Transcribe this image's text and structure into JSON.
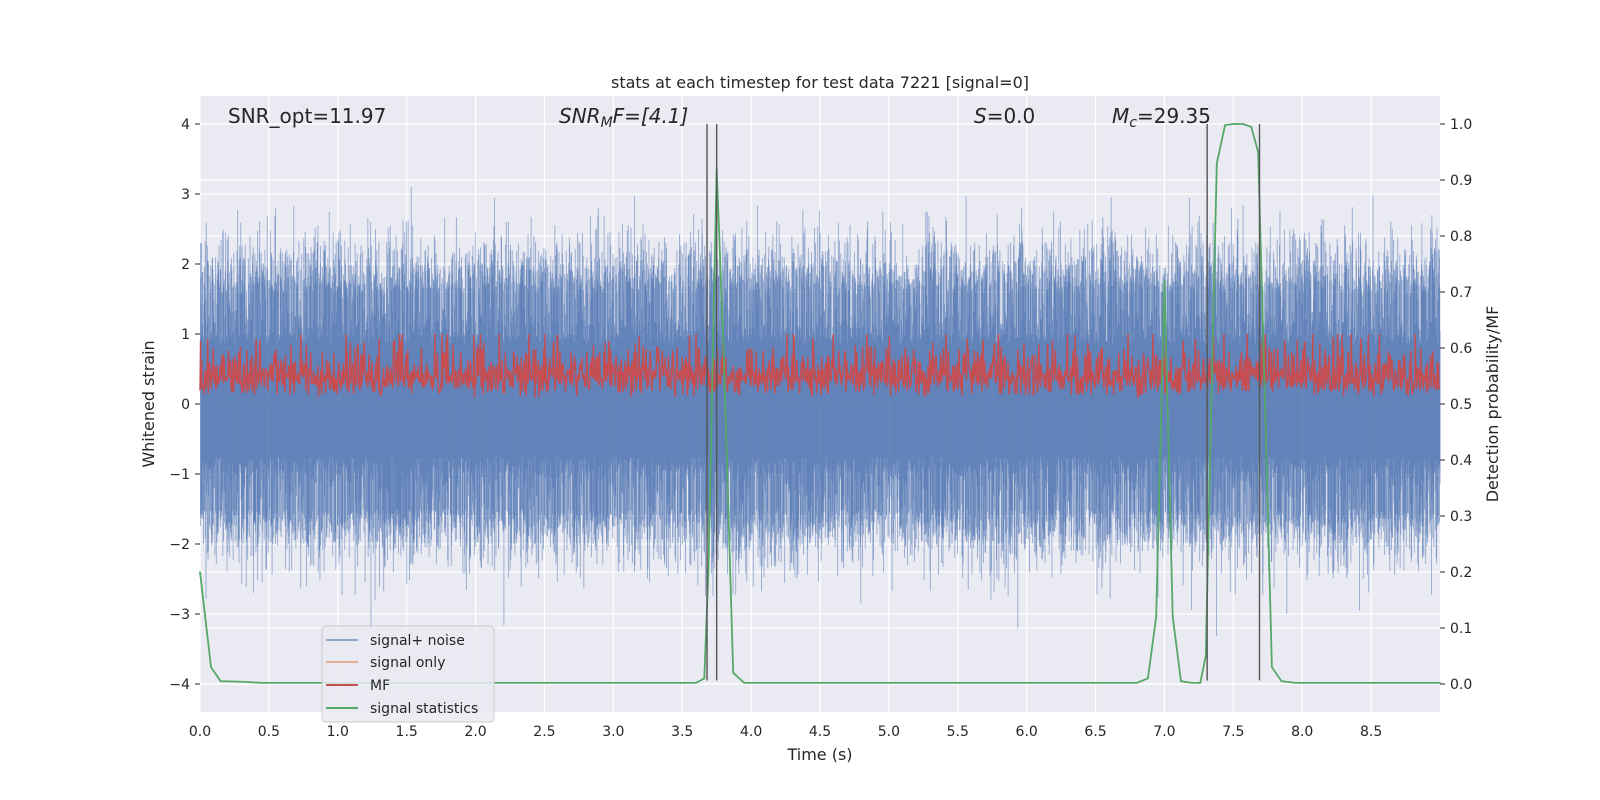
{
  "chart_data": {
    "type": "line",
    "title": "stats at each timestep for test data 7221 [signal=0]",
    "xlabel": "Time (s)",
    "ylabel_left": "Whitened strain",
    "ylabel_right": "Detection probability/MF",
    "xlim": [
      0,
      9.0
    ],
    "ylim_left": [
      -4.4,
      4.4
    ],
    "ylim_right": [
      -0.05,
      1.05
    ],
    "xticks": [
      0.0,
      0.5,
      1.0,
      1.5,
      2.0,
      2.5,
      3.0,
      3.5,
      4.0,
      4.5,
      5.0,
      5.5,
      6.0,
      6.5,
      7.0,
      7.5,
      8.0,
      8.5
    ],
    "xtick_labels": [
      "0.0",
      "0.5",
      "1.0",
      "1.5",
      "2.0",
      "2.5",
      "3.0",
      "3.5",
      "4.0",
      "4.5",
      "5.0",
      "5.5",
      "6.0",
      "6.5",
      "7.0",
      "7.5",
      "8.0",
      "8.5"
    ],
    "yticks_left": [
      4,
      3,
      2,
      1,
      0,
      -1,
      -2,
      -3,
      -4
    ],
    "ytick_labels_left": [
      "4",
      "3",
      "2",
      "1",
      "0",
      "−1",
      "−2",
      "−3",
      "−4"
    ],
    "yticks_right": [
      1.0,
      0.9,
      0.8,
      0.7,
      0.6,
      0.5,
      0.4,
      0.3,
      0.2,
      0.1,
      0.0
    ],
    "ytick_labels_right": [
      "1.0",
      "0.9",
      "0.8",
      "0.7",
      "0.6",
      "0.5",
      "0.4",
      "0.3",
      "0.2",
      "0.1",
      "0.0"
    ],
    "annotations": {
      "snr_opt": "SNR_opt=11.97",
      "snr_mf_main": "SNR",
      "snr_mf_sub": "M",
      "snr_mf_rest": "F=[4.1]",
      "s_main": "S",
      "s_rest": "=0.0",
      "mc_main": "M",
      "mc_sub": "c",
      "mc_rest": "=29.35"
    },
    "vertical_lines": [
      3.68,
      3.75,
      7.31,
      7.69
    ],
    "series": [
      {
        "name": "signal+ noise",
        "color": "#4c72b0",
        "axis": "left",
        "style": "dense-noise",
        "sample_rate": 400,
        "duration": 9.0,
        "core_range": [
          -0.75,
          0.85
        ],
        "band_range": [
          -1.5,
          1.6
        ],
        "max_extent": 3.7
      },
      {
        "name": "signal only",
        "color": "#dd8452",
        "axis": "left",
        "values": [
          0,
          0
        ]
      },
      {
        "name": "MF",
        "color": "#c44e52",
        "axis": "right",
        "style": "dense-noise",
        "sample_rate": 250,
        "duration": 9.0,
        "base": 0.51,
        "range": [
          0.5,
          0.62
        ],
        "max_extent": 0.625
      },
      {
        "name": "signal statistics",
        "color": "#55a868",
        "axis": "right",
        "x": [
          0.0,
          0.08,
          0.15,
          0.3,
          0.45,
          3.5,
          3.6,
          3.66,
          3.69,
          3.75,
          3.8,
          3.87,
          3.95,
          4.05,
          6.8,
          6.88,
          6.94,
          7.0,
          7.06,
          7.12,
          7.2,
          7.26,
          7.3,
          7.34,
          7.38,
          7.44,
          7.5,
          7.57,
          7.63,
          7.68,
          7.73,
          7.78,
          7.85,
          7.95,
          8.5,
          9.0
        ],
        "y": [
          0.2,
          0.03,
          0.005,
          0.004,
          0.002,
          0.002,
          0.002,
          0.01,
          0.2,
          0.92,
          0.6,
          0.02,
          0.002,
          0.002,
          0.002,
          0.01,
          0.12,
          0.72,
          0.12,
          0.005,
          0.002,
          0.002,
          0.05,
          0.5,
          0.93,
          0.998,
          1.0,
          1.0,
          0.995,
          0.95,
          0.5,
          0.03,
          0.005,
          0.002,
          0.002,
          0.002
        ]
      }
    ],
    "legend": {
      "placement": "lower-left",
      "entries": [
        "signal+ noise",
        "signal only",
        "MF",
        "signal statistics"
      ]
    }
  }
}
